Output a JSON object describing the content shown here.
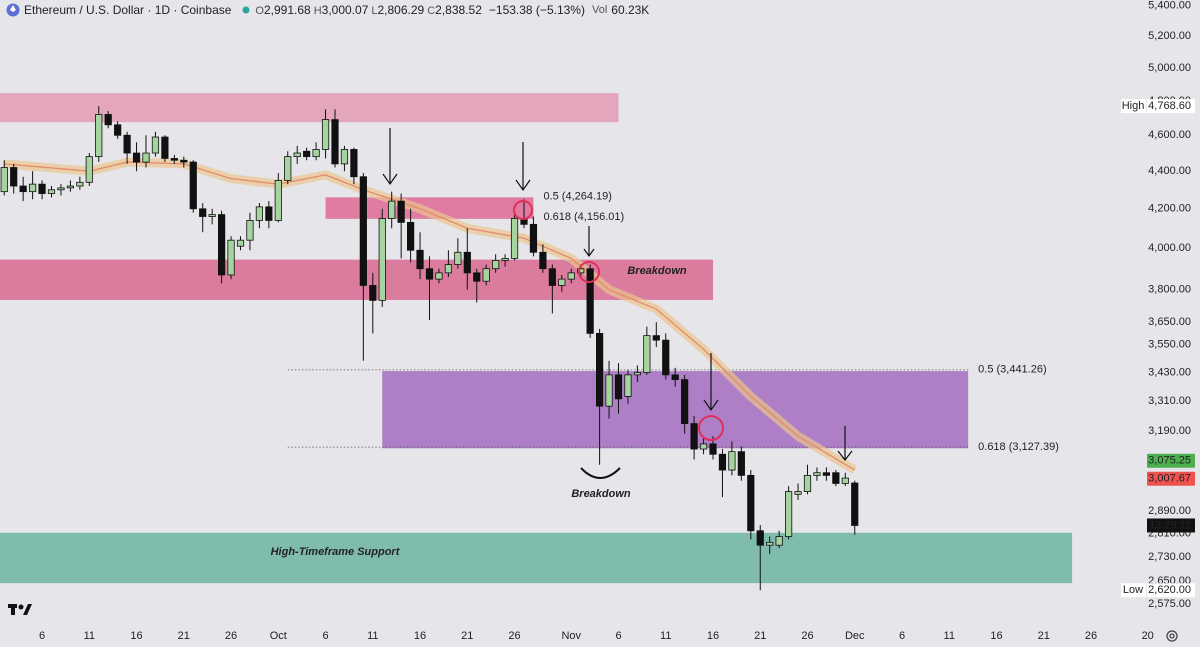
{
  "chart_data": {
    "type": "candlestick",
    "title": "Ethereum / U.S. Dollar · 1D · Coinbase",
    "stats": [
      {
        "label": "O",
        "text": "2,991.68"
      },
      {
        "label": "H",
        "text": "3,000.07"
      },
      {
        "label": "L",
        "text": "2,806.29"
      },
      {
        "label": "C",
        "text": "2,838.52"
      }
    ],
    "change": "−153.38 (−5.13%)",
    "volume": {
      "label": "Vol",
      "text": "60.23K"
    },
    "x": [
      "Sep 2",
      "Sep 3",
      "Sep 4",
      "Sep 5",
      "Sep 6",
      "Sep 7",
      "Sep 8",
      "Sep 9",
      "Sep 10",
      "Sep 11",
      "Sep 12",
      "Sep 13",
      "Sep 14",
      "Sep 15",
      "Sep 16",
      "Sep 17",
      "Sep 18",
      "Sep 19",
      "Sep 20",
      "Sep 21",
      "Sep 22",
      "Sep 23",
      "Sep 24",
      "Sep 25",
      "Sep 26",
      "Sep 27",
      "Sep 28",
      "Sep 29",
      "Sep 30",
      "Oct 1",
      "Oct 2",
      "Oct 3",
      "Oct 4",
      "Oct 5",
      "Oct 6",
      "Oct 7",
      "Oct 8",
      "Oct 9",
      "Oct 10",
      "Oct 11",
      "Oct 12",
      "Oct 13",
      "Oct 14",
      "Oct 15",
      "Oct 16",
      "Oct 17",
      "Oct 18",
      "Oct 19",
      "Oct 20",
      "Oct 21",
      "Oct 22",
      "Oct 23",
      "Oct 24",
      "Oct 25",
      "Oct 26",
      "Oct 27",
      "Oct 28",
      "Oct 29",
      "Oct 30",
      "Oct 31",
      "Nov 1",
      "Nov 2",
      "Nov 3",
      "Nov 4",
      "Nov 5",
      "Nov 6",
      "Nov 7",
      "Nov 8",
      "Nov 9",
      "Nov 10",
      "Nov 11",
      "Nov 12",
      "Nov 13",
      "Nov 14",
      "Nov 15",
      "Nov 16",
      "Nov 17",
      "Nov 18",
      "Nov 19",
      "Nov 20",
      "Nov 21",
      "Nov 22",
      "Nov 23",
      "Nov 24",
      "Nov 25",
      "Nov 26",
      "Nov 27",
      "Nov 28",
      "Nov 29",
      "Nov 30",
      "Dec 1"
    ],
    "open": [
      4290,
      4420,
      4320,
      4290,
      4330,
      4280,
      4300,
      4310,
      4320,
      4340,
      4480,
      4720,
      4660,
      4600,
      4500,
      4450,
      4500,
      4590,
      4470,
      4460,
      4450,
      4200,
      4160,
      4170,
      3870,
      4010,
      4040,
      4140,
      4210,
      4140,
      4350,
      4480,
      4510,
      4480,
      4520,
      4690,
      4440,
      4520,
      4370,
      3820,
      3750,
      4150,
      4240,
      4130,
      3990,
      3900,
      3850,
      3880,
      3920,
      3980,
      3880,
      3840,
      3900,
      3940,
      3950,
      4150,
      4120,
      3980,
      3900,
      3820,
      3850,
      3880,
      3900,
      3600,
      3290,
      3420,
      3330,
      3420,
      3430,
      3590,
      3570,
      3420,
      3400,
      3220,
      3120,
      3140,
      3100,
      3040,
      3110,
      3020,
      2820,
      2770,
      2770,
      2800,
      2950,
      2960,
      3020,
      3030,
      3030,
      2990,
      2991.68
    ],
    "high": [
      4460,
      4440,
      4370,
      4400,
      4350,
      4320,
      4330,
      4350,
      4370,
      4500,
      4768.6,
      4740,
      4680,
      4620,
      4560,
      4600,
      4620,
      4600,
      4490,
      4480,
      4460,
      4230,
      4200,
      4190,
      4060,
      4060,
      4180,
      4230,
      4240,
      4390,
      4510,
      4540,
      4530,
      4560,
      4750,
      4750,
      4540,
      4530,
      4390,
      3880,
      4200,
      4290,
      4280,
      4200,
      4080,
      3960,
      3900,
      3990,
      4050,
      4100,
      3900,
      3920,
      3970,
      3970,
      4190,
      4250,
      4160,
      4020,
      3920,
      3870,
      3900,
      3920,
      3920,
      3620,
      3480,
      3470,
      3440,
      3460,
      3630,
      3650,
      3600,
      3450,
      3420,
      3250,
      3160,
      3170,
      3120,
      3150,
      3130,
      3040,
      2840,
      2800,
      2820,
      2980,
      2990,
      3060,
      3050,
      3050,
      3040,
      3030,
      3000.07
    ],
    "low": [
      4270,
      4280,
      4240,
      4250,
      4250,
      4260,
      4270,
      4290,
      4300,
      4320,
      4450,
      4640,
      4580,
      4440,
      4400,
      4420,
      4480,
      4450,
      4440,
      4420,
      4180,
      4080,
      4120,
      3830,
      3850,
      3990,
      3990,
      4100,
      4100,
      4130,
      4330,
      4440,
      4460,
      4460,
      4470,
      4420,
      4400,
      4330,
      3480,
      3600,
      3720,
      4100,
      3950,
      3930,
      3850,
      3660,
      3830,
      3860,
      3900,
      3800,
      3740,
      3820,
      3880,
      3910,
      3940,
      4100,
      3960,
      3880,
      3690,
      3790,
      3830,
      3860,
      3580,
      3060,
      3240,
      3260,
      3300,
      3390,
      3420,
      3540,
      3400,
      3370,
      3180,
      3080,
      3100,
      3080,
      2940,
      3020,
      3000,
      2790,
      2620,
      2740,
      2760,
      2790,
      2930,
      2950,
      3000,
      3000,
      2980,
      2980,
      2806.29
    ],
    "close": [
      4420,
      4320,
      4290,
      4330,
      4280,
      4300,
      4310,
      4320,
      4340,
      4480,
      4720,
      4660,
      4600,
      4500,
      4450,
      4500,
      4590,
      4470,
      4460,
      4450,
      4200,
      4160,
      4170,
      3870,
      4040,
      4040,
      4140,
      4210,
      4140,
      4350,
      4480,
      4500,
      4480,
      4520,
      4690,
      4440,
      4520,
      4370,
      3820,
      3750,
      4150,
      4240,
      4130,
      3990,
      3900,
      3850,
      3880,
      3920,
      3980,
      3880,
      3840,
      3900,
      3940,
      3950,
      4150,
      4120,
      3980,
      3900,
      3820,
      3850,
      3880,
      3900,
      3600,
      3290,
      3420,
      3320,
      3420,
      3430,
      3590,
      3570,
      3420,
      3400,
      3220,
      3120,
      3140,
      3100,
      3040,
      3110,
      3020,
      2820,
      2770,
      2780,
      2800,
      2960,
      2960,
      3020,
      3030,
      3020,
      2990,
      3010,
      2838.52
    ],
    "up_color": "#a6d4a0",
    "down_color": "#111111",
    "log": true,
    "grid": false,
    "ylim": [
      2519,
      5438
    ],
    "yticks": [
      {
        "value": 5400,
        "label": "5,400.00"
      },
      {
        "value": 5200,
        "label": "5,200.00"
      },
      {
        "value": 5000,
        "label": "5,000.00"
      },
      {
        "value": 4800,
        "label": "4,800.00"
      },
      {
        "value": 4600,
        "label": "4,600.00"
      },
      {
        "value": 4400,
        "label": "4,400.00"
      },
      {
        "value": 4200,
        "label": "4,200.00"
      },
      {
        "value": 4000,
        "label": "4,000.00"
      },
      {
        "value": 3800,
        "label": "3,800.00"
      },
      {
        "value": 3650,
        "label": "3,650.00"
      },
      {
        "value": 3550,
        "label": "3,550.00"
      },
      {
        "value": 3430,
        "label": "3,430.00"
      },
      {
        "value": 3310,
        "label": "3,310.00"
      },
      {
        "value": 3190,
        "label": "3,190.00"
      },
      {
        "value": 2890,
        "label": "2,890.00"
      },
      {
        "value": 2810,
        "label": "2,810.00"
      },
      {
        "value": 2730,
        "label": "2,730.00"
      },
      {
        "value": 2650,
        "label": "2,650.00"
      },
      {
        "value": 2575,
        "label": "2,575.00"
      }
    ],
    "xticks": [
      {
        "value": "Sep 6",
        "label": "6"
      },
      {
        "value": "Sep 11",
        "label": "11"
      },
      {
        "value": "Sep 16",
        "label": "16"
      },
      {
        "value": "Sep 21",
        "label": "21"
      },
      {
        "value": "Sep 26",
        "label": "26"
      },
      {
        "value": "Oct 1",
        "label": "Oct"
      },
      {
        "value": "Oct 6",
        "label": "6"
      },
      {
        "value": "Oct 11",
        "label": "11"
      },
      {
        "value": "Oct 16",
        "label": "16"
      },
      {
        "value": "Oct 21",
        "label": "21"
      },
      {
        "value": "Oct 26",
        "label": "26"
      },
      {
        "value": "Nov 1",
        "label": "Nov"
      },
      {
        "value": "Nov 6",
        "label": "6"
      },
      {
        "value": "Nov 11",
        "label": "11"
      },
      {
        "value": "Nov 16",
        "label": "16"
      },
      {
        "value": "Nov 21",
        "label": "21"
      },
      {
        "value": "Nov 26",
        "label": "26"
      },
      {
        "value": "Dec 1",
        "label": "Dec"
      },
      {
        "value": "Dec 6",
        "label": "6"
      },
      {
        "value": "Dec 11",
        "label": "11"
      },
      {
        "value": "Dec 16",
        "label": "16"
      },
      {
        "value": "Dec 21",
        "label": "21"
      },
      {
        "value": "Dec 26",
        "label": "26"
      },
      {
        "value": "Jan 1",
        "label": "20"
      }
    ],
    "ema": {
      "color": "#e58a6a",
      "band_color": "#e9c48e",
      "x": [
        "Sep 2",
        "Sep 11",
        "Sep 15",
        "Sep 21",
        "Sep 26",
        "Oct 1",
        "Oct 6",
        "Oct 10",
        "Oct 16",
        "Oct 21",
        "Oct 27",
        "Nov 1",
        "Nov 5",
        "Nov 10",
        "Nov 15",
        "Nov 20",
        "Nov 25",
        "Dec 1"
      ],
      "values": [
        4440,
        4400,
        4450,
        4440,
        4360,
        4330,
        4380,
        4300,
        4200,
        4100,
        4050,
        3950,
        3800,
        3710,
        3530,
        3330,
        3170,
        3040
      ]
    },
    "zones": [
      {
        "color": "#e3a6bd",
        "from": "Sep 1",
        "to": "Nov 6",
        "low": 4675,
        "high": 4846
      },
      {
        "color": "#e07ca2",
        "from": "Oct 6",
        "to": "Oct 28",
        "low": 4148,
        "high": 4260
      },
      {
        "color": "#db7c9f",
        "from": "Sep 1",
        "to": "Nov 16",
        "low": 3752,
        "high": 3944
      },
      {
        "color": "#ae7fc6",
        "from": "Oct 12",
        "to": "Dec 13",
        "low": 3123,
        "high": 3436
      },
      {
        "color": "#80bcae",
        "from": "Sep 1",
        "to": "Dec 24",
        "low": 2643,
        "high": 2813
      }
    ],
    "fib_levels": [
      {
        "value": 4264.19,
        "label": "0.5 (4,264.19)",
        "from": "Oct 6",
        "to": "Oct 28",
        "dotted": false
      },
      {
        "value": 4156.01,
        "label": "0.618 (4,156.01)",
        "from": "Oct 6",
        "to": "Oct 28",
        "dotted": false
      },
      {
        "value": 3441.26,
        "label": "0.5 (3,441.26)",
        "from": "Oct 2",
        "to": "Dec 13",
        "dotted": true
      },
      {
        "value": 3127.39,
        "label": "0.618 (3,127.39)",
        "from": "Oct 2",
        "to": "Dec 13",
        "dotted": true
      }
    ],
    "annotations": [
      "Breakdown",
      "Breakdown",
      "High-Timeframe Support"
    ],
    "price_labels": [
      {
        "name": "High",
        "value": 4768.6,
        "label": "4,768.60",
        "color": "#ffffff"
      },
      {
        "name": "Low",
        "value": 2620,
        "label": "2,620.00",
        "color": "#ffffff"
      },
      {
        "value": 3075.25,
        "label": "3,075.25",
        "color": "#4caf50"
      },
      {
        "value": 3007.67,
        "label": "3,007.67",
        "color": "#ef5350"
      }
    ],
    "countdown": "13:29:11"
  }
}
